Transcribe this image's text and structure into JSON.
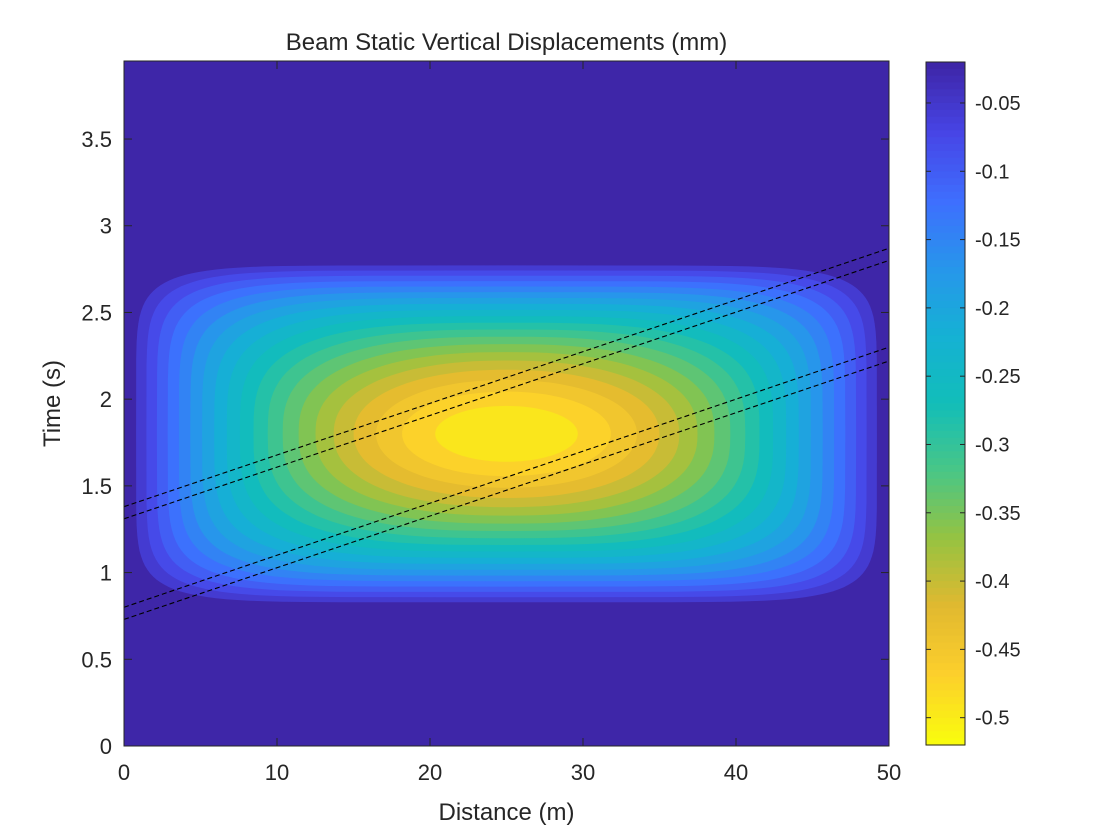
{
  "chart_data": {
    "type": "heatmap",
    "subtype": "filled-contour",
    "title": "Beam Static Vertical Displacements (mm)",
    "xlabel": "Distance (m)",
    "ylabel": "Time (s)",
    "xlim": [
      0,
      50
    ],
    "ylim": [
      0,
      3.95
    ],
    "x_ticks": [
      0,
      10,
      20,
      30,
      40,
      50
    ],
    "y_ticks": [
      0,
      0.5,
      1,
      1.5,
      2,
      2.5,
      3,
      3.5
    ],
    "x_tick_labels": [
      "0",
      "10",
      "20",
      "30",
      "40",
      "50"
    ],
    "y_tick_labels": [
      "0",
      "0.5",
      "1",
      "1.5",
      "2",
      "2.5",
      "3",
      "3.5"
    ],
    "colormap": "parula",
    "colorbar": {
      "range": [
        -0.52,
        -0.02
      ],
      "ticks": [
        -0.05,
        -0.1,
        -0.15,
        -0.2,
        -0.25,
        -0.3,
        -0.35,
        -0.4,
        -0.45,
        -0.5
      ],
      "tick_labels": [
        "-0.05",
        "-0.1",
        "-0.15",
        "-0.2",
        "-0.25",
        "-0.3",
        "-0.35",
        "-0.4",
        "-0.45",
        "-0.5"
      ],
      "placement": "right"
    },
    "field": {
      "peak_value": -0.52,
      "peak_location": {
        "x": 25,
        "y": 1.8
      },
      "background_value": -0.03,
      "x_extent": [
        0,
        50
      ],
      "y_extent": [
        0.8,
        2.8
      ]
    },
    "overlay_lines": [
      {
        "x": [
          0,
          50
        ],
        "y": [
          1.38,
          2.87
        ]
      },
      {
        "x": [
          0,
          50
        ],
        "y": [
          1.31,
          2.8
        ]
      },
      {
        "x": [
          0,
          50
        ],
        "y": [
          0.8,
          2.3
        ]
      },
      {
        "x": [
          0,
          50
        ],
        "y": [
          0.73,
          2.22
        ]
      }
    ],
    "grid": false
  }
}
